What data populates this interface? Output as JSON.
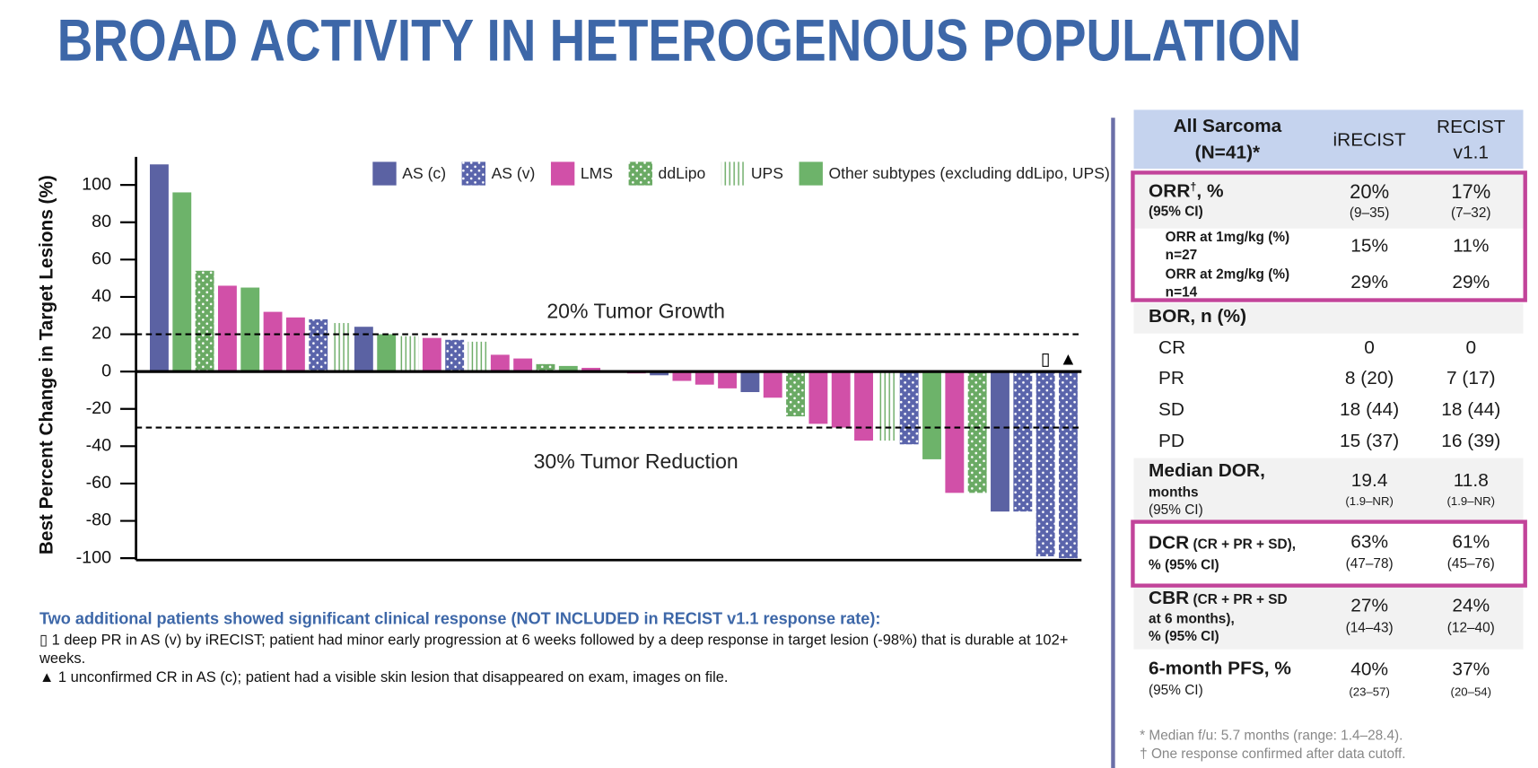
{
  "title": "BROAD ACTIVITY IN HETEROGENOUS POPULATION",
  "chart_data": {
    "type": "bar",
    "ylabel": "Best Percent Change in Target Lesions (%)",
    "ylim": [
      -101,
      115
    ],
    "yticks": [
      -100,
      -80,
      -60,
      -40,
      -20,
      0,
      20,
      40,
      60,
      80,
      100
    ],
    "reference_lines": [
      {
        "value": 20,
        "label": "20% Tumor Growth"
      },
      {
        "value": -30,
        "label": "30% Tumor Reduction"
      }
    ],
    "markers": [
      {
        "index": 39,
        "symbol": "▯"
      },
      {
        "index": 40,
        "symbol": "▲"
      }
    ],
    "series": [
      {
        "name": "AS (c)",
        "color": "#5b62a3",
        "pattern": "solid",
        "values": [
          111,
          null,
          null,
          null,
          null,
          null,
          null,
          null,
          null,
          24,
          null,
          null,
          null,
          null,
          null,
          null,
          null,
          null,
          null,
          null,
          null,
          null,
          -2,
          null,
          null,
          null,
          -11,
          null,
          null,
          null,
          null,
          null,
          null,
          null,
          null,
          null,
          null,
          -75,
          null,
          null,
          null
        ]
      },
      {
        "name": "AS (v)",
        "color": "#5a64ab",
        "pattern": "dots",
        "values": [
          null,
          null,
          null,
          null,
          null,
          null,
          null,
          28,
          null,
          null,
          null,
          null,
          null,
          17,
          null,
          null,
          null,
          null,
          null,
          null,
          null,
          null,
          null,
          null,
          null,
          null,
          null,
          null,
          null,
          null,
          null,
          null,
          null,
          -39,
          null,
          null,
          null,
          null,
          -75,
          -99,
          -100
        ]
      },
      {
        "name": "LMS",
        "color": "#d150a8",
        "pattern": "solid",
        "values": [
          null,
          null,
          null,
          46,
          null,
          32,
          29,
          null,
          null,
          null,
          null,
          null,
          18,
          null,
          null,
          9,
          7,
          null,
          null,
          2,
          0,
          -1,
          null,
          -5,
          -7,
          -9,
          null,
          -14,
          null,
          -28,
          -30,
          -37,
          null,
          null,
          null,
          -65,
          null,
          null,
          null,
          null,
          null
        ]
      },
      {
        "name": "ddLipo",
        "color": "#6aaa64",
        "pattern": "dots",
        "values": [
          null,
          null,
          54,
          null,
          null,
          null,
          null,
          null,
          null,
          null,
          null,
          null,
          null,
          null,
          null,
          null,
          null,
          4,
          null,
          null,
          null,
          null,
          null,
          null,
          null,
          null,
          null,
          null,
          -24,
          null,
          null,
          null,
          null,
          null,
          null,
          null,
          -65,
          null,
          null,
          null,
          null
        ]
      },
      {
        "name": "UPS",
        "color": "#6aaa64",
        "pattern": "stripes",
        "values": [
          null,
          null,
          null,
          null,
          null,
          null,
          null,
          null,
          26,
          null,
          null,
          19,
          null,
          null,
          16,
          null,
          null,
          null,
          null,
          null,
          null,
          null,
          null,
          null,
          null,
          null,
          null,
          null,
          null,
          null,
          null,
          null,
          -37,
          null,
          null,
          null,
          null,
          null,
          null,
          null,
          null
        ]
      },
      {
        "name": "Other subtypes (excluding ddLipo, UPS)",
        "color": "#6db36a",
        "pattern": "solid",
        "values": [
          null,
          96,
          null,
          null,
          45,
          null,
          null,
          null,
          null,
          null,
          20,
          null,
          null,
          null,
          null,
          null,
          null,
          null,
          3,
          null,
          null,
          null,
          null,
          null,
          null,
          null,
          null,
          null,
          null,
          null,
          null,
          null,
          null,
          null,
          -47,
          null,
          null,
          null,
          null,
          null,
          null
        ]
      }
    ]
  },
  "notes": {
    "heading": "Two additional patients showed significant clinical response (NOT INCLUDED in RECIST v1.1 response rate):",
    "lines": [
      {
        "symbol": "▯",
        "text": " 1 deep PR in AS (v) by iRECIST; patient had minor early progression at 6 weeks followed by a deep response in target lesion (-98%) that is durable at 102+ weeks."
      },
      {
        "symbol": "▲",
        "text": " 1 unconfirmed CR in AS (c); patient had a visible skin lesion that disappeared on exam, images on file."
      }
    ]
  },
  "table": {
    "header": {
      "col0_line1": "All Sarcoma",
      "col0_line2": "(N=41)*",
      "col1": "iRECIST",
      "col2_line1": "RECIST",
      "col2_line2": "v1.1"
    },
    "orr": {
      "label": "ORR",
      "dagger": "†",
      "unit": ", %",
      "sub": "(95% CI)",
      "irecist": "20%",
      "irecist_ci": "(9–35)",
      "recist": "17%",
      "recist_ci": "(7–32)"
    },
    "orr_1mg": {
      "label": "ORR at 1mg/kg (%)",
      "n": "n=27",
      "irecist": "15%",
      "recist": "11%"
    },
    "orr_2mg": {
      "label": "ORR at 2mg/kg (%)",
      "n": "n=14",
      "irecist": "29%",
      "recist": "29%"
    },
    "bor": {
      "label": "BOR, n (%)",
      "rows": [
        {
          "label": "CR",
          "irecist": "0",
          "recist": "0"
        },
        {
          "label": "PR",
          "irecist": "8 (20)",
          "recist": "7 (17)"
        },
        {
          "label": "SD",
          "irecist": "18 (44)",
          "recist": "18 (44)"
        },
        {
          "label": "PD",
          "irecist": "15 (37)",
          "recist": "16 (39)"
        }
      ]
    },
    "dor": {
      "label": "Median DOR,",
      "unit": "months",
      "sub": "(95% CI)",
      "irecist": "19.4",
      "irecist_ci": "(1.9–NR)",
      "recist": "11.8",
      "recist_ci": "(1.9–NR)"
    },
    "dcr": {
      "label": "DCR",
      "note": " (CR + PR + SD),",
      "sub": "% (95% CI)",
      "irecist": "63%",
      "irecist_ci": "(47–78)",
      "recist": "61%",
      "recist_ci": "(45–76)"
    },
    "cbr": {
      "label": "CBR",
      "note": " (CR + PR + SD",
      "note2": "at 6 months),",
      "sub": "% (95% CI)",
      "irecist": "27%",
      "irecist_ci": "(14–43)",
      "recist": "24%",
      "recist_ci": "(12–40)"
    },
    "pfs": {
      "label": "6-month PFS, %",
      "sub": "(95% CI)",
      "irecist": "40%",
      "irecist_ci": "(23–57)",
      "recist": "37%",
      "recist_ci": "(20–54)"
    },
    "footnotes": [
      "* Median f/u: 5.7 months (range: 1.4–28.4).",
      "† One response confirmed after data cutoff."
    ]
  }
}
